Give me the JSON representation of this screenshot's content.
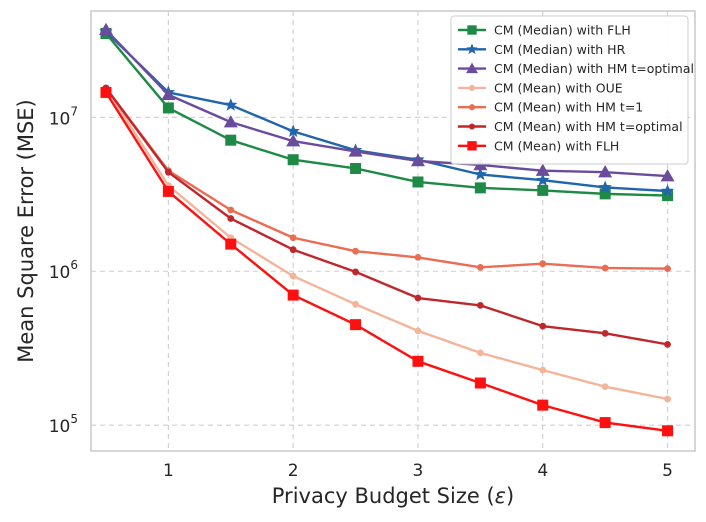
{
  "chart_data": {
    "type": "line",
    "title": "",
    "xlabel_prefix": "Privacy Budget Size (",
    "xlabel_symbol": "ε",
    "xlabel_suffix": ")",
    "ylabel": "Mean Square Error (MSE)",
    "x": [
      0.5,
      1,
      1.5,
      2,
      2.5,
      3,
      3.5,
      4,
      4.5,
      5
    ],
    "xlim": [
      0.38,
      5.22
    ],
    "ylim": [
      68000,
      49000000
    ],
    "yscale": "log",
    "grid": true,
    "legend_position": "top-right",
    "x_ticks": [
      {
        "value": 1,
        "label": "1"
      },
      {
        "value": 2,
        "label": "2"
      },
      {
        "value": 3,
        "label": "3"
      },
      {
        "value": 4,
        "label": "4"
      },
      {
        "value": 5,
        "label": "5"
      }
    ],
    "y_ticks": [
      {
        "value": 100000,
        "base": "10",
        "exp": "5"
      },
      {
        "value": 1000000,
        "base": "10",
        "exp": "6"
      },
      {
        "value": 10000000,
        "base": "10",
        "exp": "7"
      }
    ],
    "series": [
      {
        "name": "CM (Median) with FLH",
        "color": "#1e8a45",
        "marker": "square",
        "values": [
          35000000,
          11500000,
          7100000,
          5300000,
          4650000,
          3800000,
          3480000,
          3350000,
          3180000,
          3100000
        ]
      },
      {
        "name": "CM (Median) with HR",
        "color": "#2166ac",
        "marker": "star",
        "values": [
          36000000,
          14500000,
          12000000,
          8100000,
          6100000,
          5300000,
          4250000,
          3900000,
          3500000,
          3320000
        ]
      },
      {
        "name": "CM (Median) with HM t=optimal",
        "color": "#6a4c9c",
        "marker": "triangle",
        "values": [
          37000000,
          14000000,
          9300000,
          7000000,
          6000000,
          5200000,
          4900000,
          4500000,
          4400000,
          4150000
        ]
      },
      {
        "name": "CM (Mean) with OUE",
        "color": "#f4b49a",
        "marker": "dot",
        "values": [
          15500000,
          3600000,
          1650000,
          930000,
          610000,
          410000,
          295000,
          228000,
          178000,
          148000
        ]
      },
      {
        "name": "CM (Mean) with HM t=1",
        "color": "#ec6b53",
        "marker": "dot",
        "values": [
          15500000,
          4500000,
          2500000,
          1650000,
          1350000,
          1230000,
          1060000,
          1120000,
          1050000,
          1040000
        ]
      },
      {
        "name": "CM (Mean) with HM t=optimal",
        "color": "#c0272d",
        "marker": "dot",
        "values": [
          15500000,
          4400000,
          2200000,
          1380000,
          990000,
          670000,
          600000,
          440000,
          395000,
          335000
        ]
      },
      {
        "name": "CM (Mean) with FLH",
        "color": "#ff1010",
        "marker": "square",
        "values": [
          14500000,
          3300000,
          1500000,
          700000,
          450000,
          260000,
          188000,
          135000,
          104000,
          92000
        ]
      }
    ]
  }
}
